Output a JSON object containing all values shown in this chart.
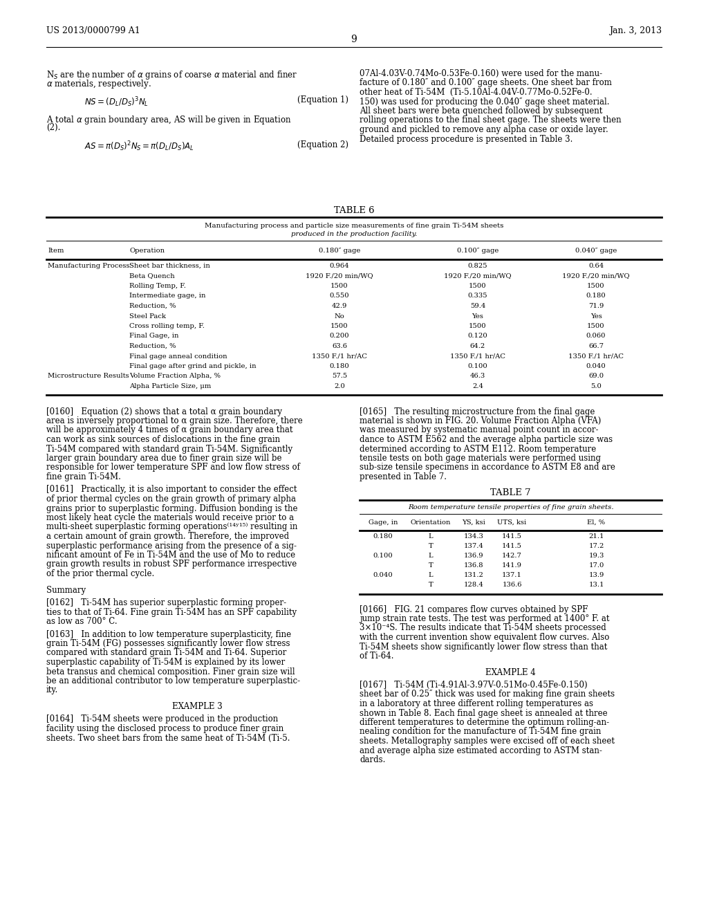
{
  "header_left": "US 2013/0000799 A1",
  "header_right": "Jan. 3, 2013",
  "page_number": "9",
  "bg_color": "#ffffff",
  "table6": {
    "title": "TABLE 6",
    "subtitle_line1": "Manufacturing process and particle size measurements of fine grain Ti-54M sheets",
    "subtitle_line2": "produced in the production facility.",
    "rows": [
      [
        "Manufacturing Process",
        "Sheet bar thickness, in",
        "0.964",
        "0.825",
        "0.64"
      ],
      [
        "",
        "Beta Quench",
        "1920 F./20 min/WQ",
        "1920 F./20 min/WQ",
        "1920 F./20 min/WQ"
      ],
      [
        "",
        "Rolling Temp, F.",
        "1500",
        "1500",
        "1500"
      ],
      [
        "",
        "Intermediate gage, in",
        "0.550",
        "0.335",
        "0.180"
      ],
      [
        "",
        "Reduction, %",
        "42.9",
        "59.4",
        "71.9"
      ],
      [
        "",
        "Steel Pack",
        "No",
        "Yes",
        "Yes"
      ],
      [
        "",
        "Cross rolling temp, F.",
        "1500",
        "1500",
        "1500"
      ],
      [
        "",
        "Final Gage, in",
        "0.200",
        "0.120",
        "0.060"
      ],
      [
        "",
        "Reduction, %",
        "63.6",
        "64.2",
        "66.7"
      ],
      [
        "",
        "Final gage anneal condition",
        "1350 F./1 hr/AC",
        "1350 F./1 hr/AC",
        "1350 F./1 hr/AC"
      ],
      [
        "",
        "Final gage after grind and pickle, in",
        "0.180",
        "0.100",
        "0.040"
      ],
      [
        "Microstructure Results",
        "Volume Fraction Alpha, %",
        "57.5",
        "46.3",
        "69.0"
      ],
      [
        "",
        "Alpha Particle Size, μm",
        "2.0",
        "2.4",
        "5.0"
      ]
    ]
  },
  "table7": {
    "title": "TABLE 7",
    "subtitle": "Room temperature tensile properties of fine grain sheets.",
    "headers": [
      "Gage, in",
      "Orientation",
      "YS, ksi",
      "UTS, ksi",
      "El, %"
    ],
    "rows": [
      [
        "0.180",
        "L",
        "134.3",
        "141.5",
        "21.1"
      ],
      [
        "",
        "T",
        "137.4",
        "141.5",
        "17.2"
      ],
      [
        "0.100",
        "L",
        "136.9",
        "142.7",
        "19.3"
      ],
      [
        "",
        "T",
        "136.8",
        "141.9",
        "17.0"
      ],
      [
        "0.040",
        "L",
        "131.2",
        "137.1",
        "13.9"
      ],
      [
        "",
        "T",
        "128.4",
        "136.6",
        "13.1"
      ]
    ]
  }
}
